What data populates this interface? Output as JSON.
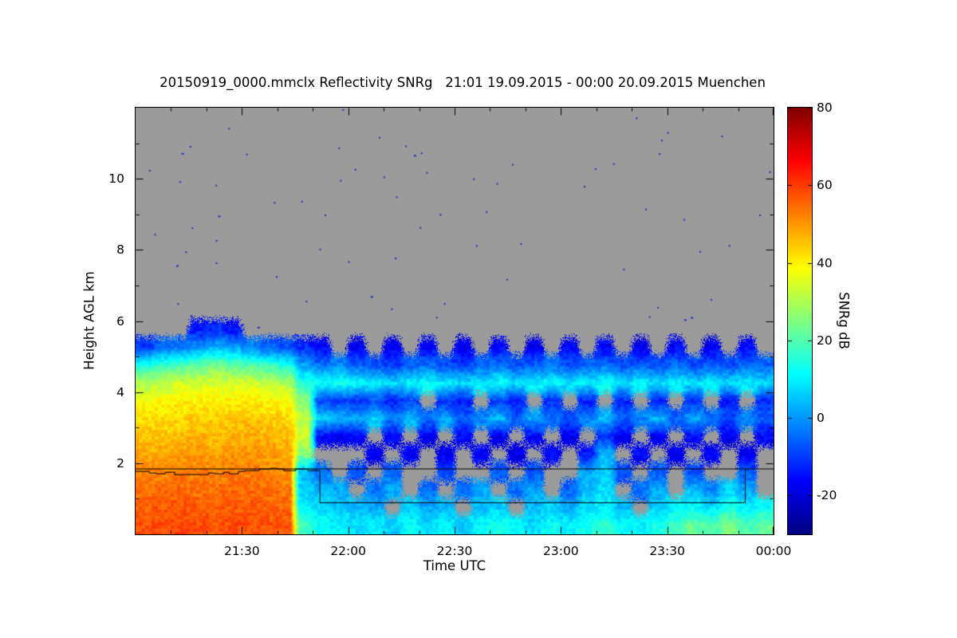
{
  "chart_data": {
    "type": "heatmap",
    "title": "20150919_0000.mmclx Reflectivity SNRg   21:01 19.09.2015 - 00:00 20.09.2015 Muenchen",
    "station": "Muenchen",
    "xlabel": "Time UTC",
    "ylabel": "Height AGL km",
    "colorbar": {
      "label": "SNRg dB",
      "ticks": [
        80,
        60,
        40,
        20,
        0,
        -20
      ],
      "vmin": -30,
      "vmax": 80,
      "colormap": "jet"
    },
    "x_axis": {
      "start_label": "21:01",
      "end_label": "00:00",
      "start_minutes": 0,
      "end_minutes": 180,
      "tick_minutes": [
        30,
        60,
        90,
        120,
        150,
        180
      ],
      "tick_labels": [
        "21:30",
        "22:00",
        "22:30",
        "23:00",
        "23:30",
        "00:00"
      ],
      "minor_step_minutes": 10
    },
    "y_axis": {
      "min_km": 0,
      "max_km": 12,
      "ticks": [
        2,
        4,
        6,
        8,
        10
      ],
      "tick_labels": [
        "2",
        "4",
        "6",
        "8",
        "10"
      ],
      "minor_step_km": 1
    },
    "no_signal_color": "#9b9b9b",
    "time_bin_minutes": 5,
    "height_centers_km": [
      0.25,
      0.75,
      1.25,
      1.75,
      2.25,
      2.75,
      3.25,
      3.75,
      4.25,
      4.75,
      5.25,
      5.75
    ],
    "grid_snr_db": [
      [
        58,
        56,
        54,
        52,
        48,
        45,
        42,
        38,
        30,
        14,
        -10,
        null
      ],
      [
        58,
        57,
        55,
        52,
        48,
        45,
        42,
        39,
        32,
        18,
        -6,
        null
      ],
      [
        59,
        57,
        55,
        53,
        49,
        46,
        43,
        40,
        34,
        20,
        -4,
        null
      ],
      [
        58,
        56,
        54,
        52,
        50,
        47,
        44,
        40,
        33,
        22,
        0,
        -14
      ],
      [
        57,
        56,
        54,
        52,
        49,
        46,
        44,
        41,
        35,
        24,
        4,
        -12
      ],
      [
        58,
        56,
        55,
        53,
        50,
        47,
        44,
        40,
        34,
        22,
        2,
        -15
      ],
      [
        58,
        57,
        55,
        53,
        50,
        48,
        45,
        41,
        34,
        20,
        -2,
        null
      ],
      [
        57,
        56,
        54,
        52,
        49,
        47,
        44,
        40,
        32,
        18,
        -6,
        null
      ],
      [
        57,
        55,
        53,
        51,
        48,
        46,
        43,
        39,
        30,
        14,
        -8,
        null
      ],
      [
        18,
        10,
        6,
        4,
        26,
        34,
        32,
        26,
        16,
        2,
        -12,
        null
      ],
      [
        12,
        8,
        4,
        -4,
        null,
        -16,
        6,
        -8,
        12,
        -4,
        -16,
        null
      ],
      [
        10,
        6,
        2,
        null,
        null,
        -18,
        4,
        -10,
        14,
        -2,
        null,
        null
      ],
      [
        8,
        4,
        null,
        -8,
        null,
        -16,
        2,
        -12,
        12,
        -6,
        -18,
        null
      ],
      [
        10,
        2,
        -4,
        null,
        -18,
        null,
        6,
        -8,
        10,
        -8,
        null,
        null
      ],
      [
        6,
        null,
        2,
        -6,
        null,
        -16,
        -2,
        -14,
        8,
        -10,
        -18,
        null
      ],
      [
        12,
        6,
        null,
        null,
        -16,
        null,
        4,
        -10,
        10,
        -6,
        null,
        null
      ],
      [
        8,
        2,
        -6,
        null,
        null,
        -18,
        -4,
        null,
        12,
        -4,
        -16,
        null
      ],
      [
        10,
        4,
        null,
        -8,
        -18,
        null,
        2,
        -12,
        10,
        -8,
        null,
        null
      ],
      [
        6,
        null,
        -4,
        null,
        null,
        -16,
        -6,
        -14,
        8,
        -10,
        -18,
        null
      ],
      [
        12,
        4,
        2,
        null,
        -16,
        null,
        -2,
        null,
        10,
        -6,
        null,
        null
      ],
      [
        14,
        6,
        null,
        -6,
        null,
        -18,
        4,
        -10,
        12,
        -4,
        -16,
        null
      ],
      [
        10,
        null,
        -4,
        null,
        -18,
        null,
        -6,
        -14,
        8,
        -8,
        null,
        null
      ],
      [
        8,
        4,
        2,
        -8,
        null,
        -16,
        2,
        null,
        10,
        -6,
        -18,
        null
      ],
      [
        12,
        6,
        null,
        null,
        -16,
        null,
        -4,
        -12,
        12,
        -4,
        null,
        null
      ],
      [
        10,
        2,
        -6,
        null,
        null,
        -18,
        -8,
        null,
        8,
        -8,
        -16,
        null
      ],
      [
        14,
        8,
        4,
        2,
        -14,
        null,
        -2,
        -14,
        10,
        -6,
        null,
        null
      ],
      [
        16,
        10,
        8,
        6,
        4,
        -12,
        4,
        null,
        12,
        -4,
        -16,
        null
      ],
      [
        12,
        4,
        null,
        -8,
        null,
        -18,
        -6,
        -12,
        8,
        -8,
        null,
        null
      ],
      [
        10,
        null,
        -4,
        null,
        -16,
        null,
        -2,
        null,
        10,
        -6,
        -18,
        null
      ],
      [
        14,
        6,
        2,
        -6,
        null,
        -18,
        4,
        -14,
        8,
        -8,
        null,
        null
      ],
      [
        18,
        10,
        null,
        null,
        -18,
        null,
        -6,
        null,
        10,
        -4,
        -16,
        null
      ],
      [
        22,
        12,
        4,
        -8,
        null,
        -16,
        2,
        -12,
        8,
        -8,
        null,
        null
      ],
      [
        20,
        8,
        -2,
        null,
        -16,
        null,
        -4,
        null,
        10,
        -6,
        -18,
        null
      ],
      [
        24,
        14,
        6,
        null,
        null,
        -18,
        -8,
        -14,
        8,
        -8,
        null,
        null
      ],
      [
        20,
        10,
        2,
        -6,
        -18,
        null,
        -2,
        null,
        10,
        -4,
        -16,
        null
      ],
      [
        22,
        12,
        null,
        null,
        null,
        -16,
        -6,
        -12,
        8,
        -6,
        null,
        null
      ]
    ],
    "annotations": {
      "ceiling_line": {
        "height_km": 1.85,
        "from_min": 0,
        "to_min": 180
      },
      "step_line": {
        "jagged_height_km": 1.78,
        "jag_amp_km": 0.06,
        "jag_from_min": 0,
        "jag_to_min": 52,
        "lower_height_km": 0.9,
        "lower_to_min": 172,
        "seed": 24680
      }
    },
    "noise_speckles": {
      "count": 70,
      "seed": 987654321,
      "color": "#2030c8"
    }
  }
}
